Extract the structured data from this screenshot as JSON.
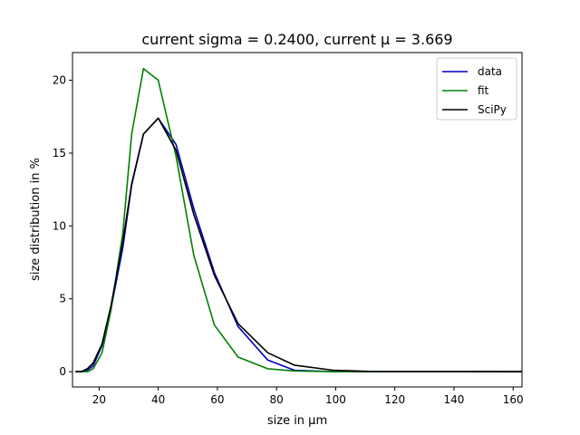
{
  "chart_data": {
    "type": "line",
    "title": "current sigma = 0.2400, current μ = 3.669",
    "xlabel": "size in µm",
    "ylabel": "size distribution in %",
    "xlim": [
      11,
      163
    ],
    "ylim": [
      -1.05,
      21.9
    ],
    "x_ticks": [
      20,
      40,
      60,
      80,
      100,
      120,
      140,
      160
    ],
    "y_ticks": [
      0,
      5,
      10,
      15,
      20
    ],
    "grid": false,
    "legend_position": "upper-right",
    "series": [
      {
        "name": "data",
        "color": "#0000bf",
        "x": [
          12,
          14,
          16,
          18,
          21,
          24,
          28,
          31,
          35,
          40,
          46,
          52,
          59,
          67,
          77,
          86,
          99,
          111,
          163
        ],
        "y": [
          0.0,
          0.0,
          0.1,
          0.4,
          1.8,
          4.3,
          8.5,
          12.8,
          16.3,
          17.4,
          15.6,
          11.2,
          6.8,
          3.1,
          0.8,
          0.1,
          0.0,
          0.0,
          0.0
        ]
      },
      {
        "name": "fit",
        "color": "#008000",
        "x": [
          12,
          14,
          16,
          18,
          21,
          24,
          28,
          31,
          35,
          40,
          46,
          52,
          59,
          67,
          77,
          86,
          99,
          111,
          163
        ],
        "y": [
          0.0,
          0.0,
          0.0,
          0.2,
          1.3,
          4.2,
          9.5,
          16.3,
          20.8,
          20.0,
          14.8,
          8.0,
          3.2,
          1.0,
          0.2,
          0.05,
          0.0,
          0.0,
          0.0
        ]
      },
      {
        "name": "SciPy",
        "color": "#000000",
        "x": [
          12,
          14,
          16,
          18,
          21,
          24,
          28,
          31,
          35,
          40,
          46,
          52,
          59,
          67,
          77,
          86,
          99,
          111,
          163
        ],
        "y": [
          0.0,
          0.0,
          0.2,
          0.6,
          1.9,
          4.5,
          8.9,
          12.9,
          16.3,
          17.4,
          15.2,
          10.8,
          6.6,
          3.3,
          1.3,
          0.45,
          0.1,
          0.02,
          0.0
        ]
      }
    ]
  }
}
